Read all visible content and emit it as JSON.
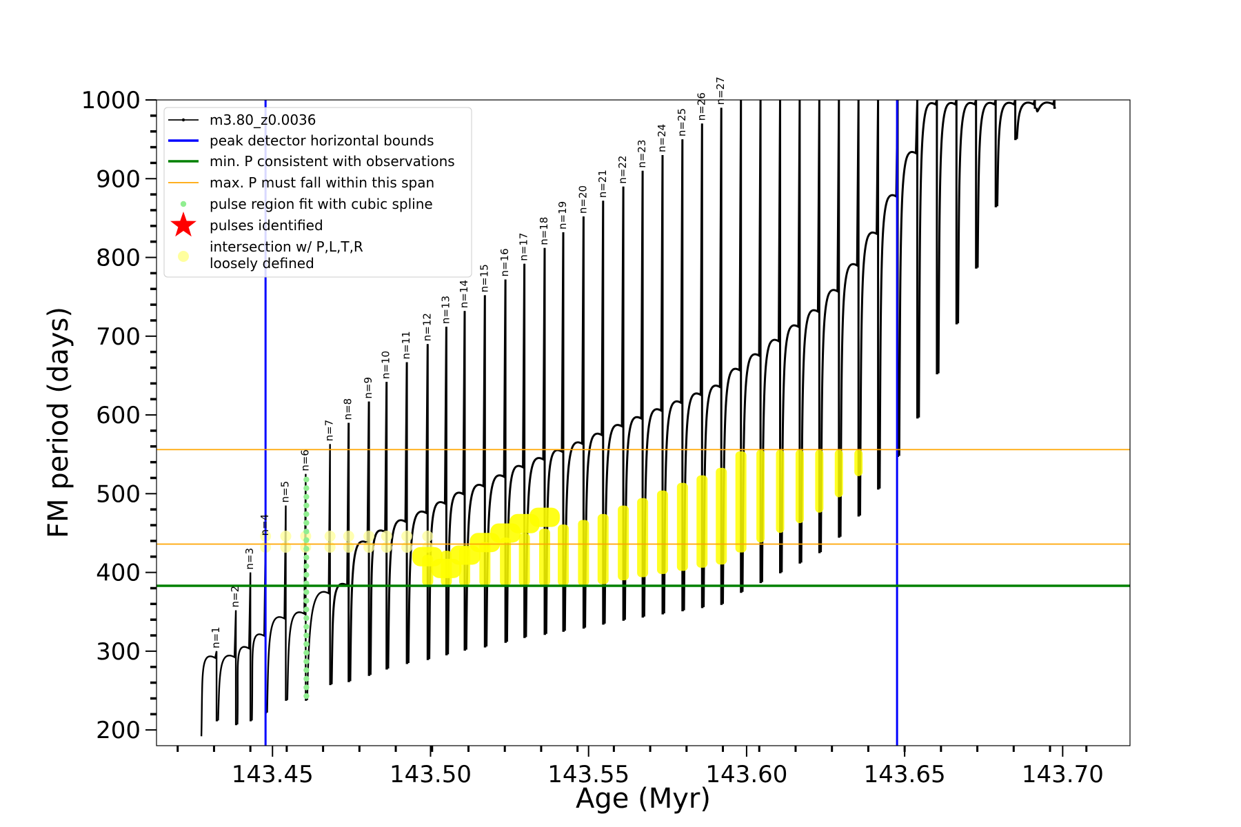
{
  "chart_data": {
    "type": "line",
    "xlabel": "Age (Myr)",
    "ylabel": "FM period (days)",
    "xlim": [
      143.4133,
      143.7213
    ],
    "ylim": [
      180,
      1000
    ],
    "x_ticks": [
      143.45,
      143.5,
      143.55,
      143.6,
      143.65,
      143.7
    ],
    "x_tick_labels": [
      "143.45",
      "143.50",
      "143.55",
      "143.60",
      "143.65",
      "143.70"
    ],
    "y_ticks": [
      200,
      300,
      400,
      500,
      600,
      700,
      800,
      900,
      1000
    ],
    "y_tick_labels": [
      "200",
      "300",
      "400",
      "500",
      "600",
      "700",
      "800",
      "900",
      "1000"
    ],
    "grid": false,
    "legend_placement": "top-left",
    "legend": [
      {
        "label": "m3.80_z0.0036",
        "marker": "line-dot",
        "color": "#000000"
      },
      {
        "label": "peak detector horizontal bounds",
        "marker": "line",
        "color": "#0000ff"
      },
      {
        "label": "min. P consistent with observations",
        "marker": "line",
        "color": "#008000"
      },
      {
        "label": "max. P must fall within this span",
        "marker": "thin-line",
        "color": "#ffa500"
      },
      {
        "label": "pulse region fit with cubic spline",
        "marker": "dot",
        "color": "#90ee90"
      },
      {
        "label": "pulses identified",
        "marker": "star",
        "color": "#ff0000"
      },
      {
        "label": "intersection w/ P,L,T,R\nloosely defined",
        "marker": "circle",
        "color": "#ffff9e"
      }
    ],
    "vertical_lines": [
      {
        "series": "peak detector horizontal bounds",
        "x": 143.4478,
        "color": "#0000ff"
      },
      {
        "series": "peak detector horizontal bounds",
        "x": 143.6476,
        "color": "#0000ff"
      }
    ],
    "horizontal_lines": [
      {
        "series": "min. P consistent with observations",
        "y": 383,
        "color": "#008000"
      },
      {
        "series": "max. P must fall within this span",
        "y": 436,
        "color": "#ffa500"
      },
      {
        "series": "max. P must fall within this span",
        "y": 556,
        "color": "#ffa500"
      }
    ],
    "pulses": [
      {
        "label": "n=1",
        "x": 143.4323,
        "min": 212,
        "peak": 300
      },
      {
        "label": "n=2",
        "x": 143.4384,
        "min": 207,
        "peak": 352
      },
      {
        "label": "n=3",
        "x": 143.443,
        "min": 212,
        "peak": 400
      },
      {
        "label": "n=4",
        "x": 143.4478,
        "min": 222,
        "peak": 443
      },
      {
        "label": "n=5",
        "x": 143.4542,
        "min": 238,
        "peak": 485
      },
      {
        "label": "n=6",
        "x": 143.4605,
        "min": 238,
        "peak": 525
      },
      {
        "label": "n=7",
        "x": 143.4682,
        "min": 258,
        "peak": 563
      },
      {
        "label": "n=8",
        "x": 143.4741,
        "min": 262,
        "peak": 590
      },
      {
        "label": "n=9",
        "x": 143.4805,
        "min": 270,
        "peak": 617
      },
      {
        "label": "n=10",
        "x": 143.4861,
        "min": 278,
        "peak": 642
      },
      {
        "label": "n=11",
        "x": 143.4925,
        "min": 285,
        "peak": 667
      },
      {
        "label": "n=12",
        "x": 143.4991,
        "min": 290,
        "peak": 690
      },
      {
        "label": "n=13",
        "x": 143.505,
        "min": 296,
        "peak": 712
      },
      {
        "label": "n=14",
        "x": 143.5108,
        "min": 302,
        "peak": 732
      },
      {
        "label": "n=15",
        "x": 143.5172,
        "min": 306,
        "peak": 752
      },
      {
        "label": "n=16",
        "x": 143.5237,
        "min": 312,
        "peak": 772
      },
      {
        "label": "n=17",
        "x": 143.5297,
        "min": 318,
        "peak": 792
      },
      {
        "label": "n=18",
        "x": 143.5361,
        "min": 322,
        "peak": 812
      },
      {
        "label": "n=19",
        "x": 143.542,
        "min": 326,
        "peak": 832
      },
      {
        "label": "n=20",
        "x": 143.5484,
        "min": 330,
        "peak": 852
      },
      {
        "label": "n=21",
        "x": 143.5546,
        "min": 335,
        "peak": 872
      },
      {
        "label": "n=22",
        "x": 143.561,
        "min": 340,
        "peak": 890
      },
      {
        "label": "n=23",
        "x": 143.5671,
        "min": 344,
        "peak": 910
      },
      {
        "label": "n=24",
        "x": 143.5734,
        "min": 348,
        "peak": 930
      },
      {
        "label": "n=25",
        "x": 143.5797,
        "min": 352,
        "peak": 950
      },
      {
        "label": "n=26",
        "x": 143.5859,
        "min": 356,
        "peak": 970
      },
      {
        "label": "n=27",
        "x": 143.592,
        "min": 360,
        "peak": 990
      }
    ]
  }
}
